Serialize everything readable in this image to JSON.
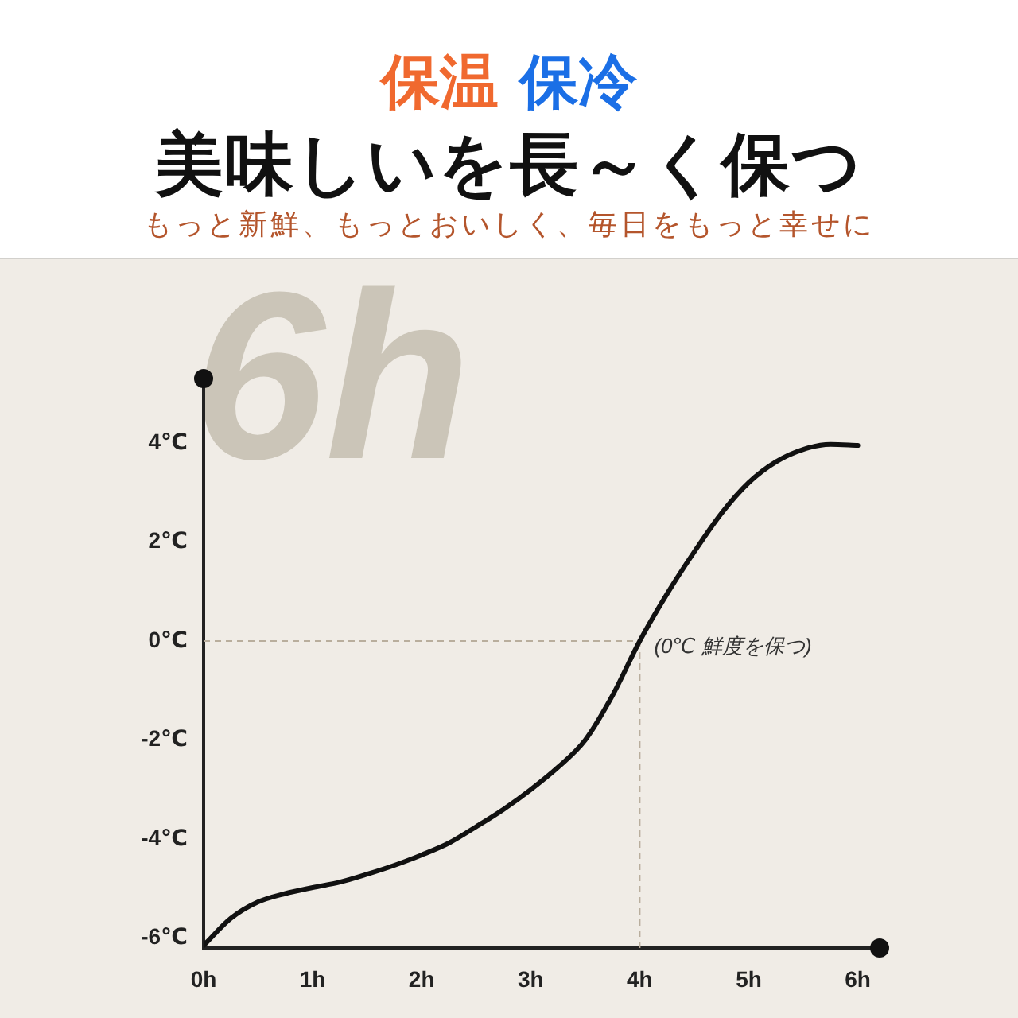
{
  "chart_data": {
    "type": "line",
    "title": "保温 保冷",
    "subtitle": "美味しいを長～く保つ",
    "annotations": [
      "もっと新鮮、もっとおいしく、毎日をもっと幸せに",
      "6h",
      {
        "text": "(0℃ 鮮度を保つ)",
        "x": 4,
        "y": 0
      }
    ],
    "x": [
      0,
      0.25,
      0.5,
      0.75,
      1,
      1.25,
      1.5,
      1.75,
      2,
      2.25,
      2.5,
      2.75,
      3,
      3.25,
      3.5,
      3.75,
      4,
      4.25,
      4.5,
      4.75,
      5,
      5.25,
      5.5,
      5.75,
      6
    ],
    "series": [
      {
        "color": "#111111",
        "values": [
          -6.15,
          -5.6,
          -5.27,
          -5.1,
          -4.98,
          -4.87,
          -4.71,
          -4.53,
          -4.32,
          -4.08,
          -3.75,
          -3.4,
          -3.0,
          -2.55,
          -2.0,
          -1.1,
          0,
          0.95,
          1.8,
          2.58,
          3.2,
          3.62,
          3.87,
          3.97,
          3.95
        ]
      }
    ],
    "xlim": [
      0,
      6.2
    ],
    "xticks": [
      {
        "value": 0,
        "label": "0h"
      },
      {
        "value": 1,
        "label": "1h"
      },
      {
        "value": 2,
        "label": "2h"
      },
      {
        "value": 3,
        "label": "3h"
      },
      {
        "value": 4,
        "label": "4h"
      },
      {
        "value": 5,
        "label": "5h"
      },
      {
        "value": 6,
        "label": "6h"
      }
    ],
    "ylim": [
      -6.2,
      5.3
    ],
    "yticks": [
      {
        "value": -6,
        "label": "-6℃"
      },
      {
        "value": -4,
        "label": "-4℃"
      },
      {
        "value": -2,
        "label": "-2℃"
      },
      {
        "value": 0,
        "label": "0℃"
      },
      {
        "value": 2,
        "label": "2℃"
      },
      {
        "value": 4,
        "label": "4℃"
      }
    ],
    "ref_lines": [
      {
        "axis": "y",
        "value": 0,
        "color": "#b9ae9d",
        "line_style": "dashed"
      },
      {
        "axis": "x",
        "value": 4,
        "color": "#b9ae9d",
        "line_style": "dashed"
      }
    ],
    "marker": "none"
  }
}
